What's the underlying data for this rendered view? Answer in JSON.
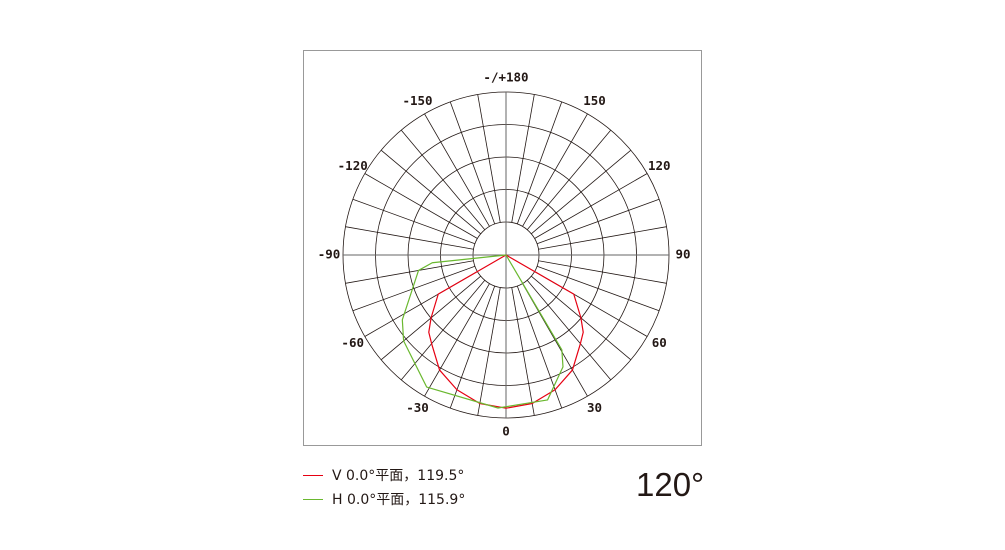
{
  "chart_data": {
    "type": "polar",
    "angle_unit": "degrees",
    "angle_ticks": [
      -180,
      -150,
      -120,
      -90,
      -60,
      -30,
      0,
      30,
      60,
      90,
      120,
      150,
      180
    ],
    "angle_tick_labels": {
      "0": "0",
      "30": "30",
      "60": "60",
      "90": "90",
      "120": "120",
      "150": "150",
      "180": "-/+180",
      "-30": "-30",
      "-60": "-60",
      "-90": "-90",
      "-120": "-120",
      "-150": "-150"
    },
    "radial_rings": 5,
    "spoke_step_deg": 10,
    "r_range": [
      0,
      1
    ],
    "series": [
      {
        "name": "V 0.0°平面，119.5°",
        "color": "#e60012",
        "points": [
          [
            -61,
            0
          ],
          [
            -60,
            0.48
          ],
          [
            -50,
            0.6
          ],
          [
            -45,
            0.67
          ],
          [
            -40,
            0.71
          ],
          [
            -30,
            0.815
          ],
          [
            -20,
            0.88
          ],
          [
            -10,
            0.925
          ],
          [
            0,
            0.94
          ],
          [
            10,
            0.925
          ],
          [
            20,
            0.88
          ],
          [
            30,
            0.815
          ],
          [
            40,
            0.71
          ],
          [
            45,
            0.67
          ],
          [
            50,
            0.6
          ],
          [
            60,
            0.48
          ],
          [
            61,
            0
          ]
        ]
      },
      {
        "name": "H 0.0°平面，115.9°",
        "color": "#6ab82f",
        "points": [
          [
            -85,
            0
          ],
          [
            -84,
            0.455
          ],
          [
            -80,
            0.545
          ],
          [
            -58,
            0.75
          ],
          [
            -50,
            0.82
          ],
          [
            -31,
            0.945
          ],
          [
            -3,
            0.94
          ],
          [
            16,
            0.925
          ],
          [
            27,
            0.77
          ],
          [
            30.5,
            0.675
          ],
          [
            31,
            0
          ]
        ]
      }
    ]
  },
  "legend": [
    {
      "label": "V 0.0°平面，119.5°",
      "color": "#e60012"
    },
    {
      "label": "H 0.0°平面，115.9°",
      "color": "#6ab82f"
    }
  ],
  "beam_angle": "120°"
}
